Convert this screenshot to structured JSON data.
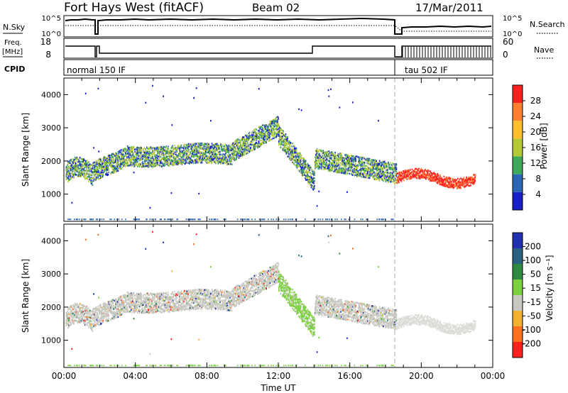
{
  "header": {
    "title": "Fort Hays West (fitACF)",
    "beam": "Beam 02",
    "date": "17/Mar/2011"
  },
  "panels": {
    "nsky": {
      "left_label": "N.Sky",
      "right_label": "N.Search",
      "left_ticks": [
        "10^5",
        "10^0"
      ],
      "right_ticks": [
        "10^5",
        "10^0"
      ],
      "right_legend_style": "dotted"
    },
    "freq": {
      "left_label": "Freq.",
      "left_unit": "[MHz]",
      "right_label": "Nave",
      "left_ticks": [
        "18",
        "8"
      ],
      "right_ticks": [
        "60",
        "0"
      ],
      "right_legend_style": "dotted"
    },
    "cpid": {
      "label": "CPID",
      "modes": [
        {
          "label": "normal 150 IF",
          "start_hour": 0,
          "end_hour": 18.6
        },
        {
          "label": "tau 502 IF",
          "start_hour": 18.6,
          "end_hour": 24
        }
      ]
    }
  },
  "chart_data": [
    {
      "type": "heatmap",
      "name": "power",
      "ylabel": "Slant Range [km]",
      "xlim": [
        0,
        24
      ],
      "ylim": [
        180,
        4500
      ],
      "yticks": [
        1000,
        2000,
        3000,
        4000
      ],
      "colorbar": {
        "label": "Power [dB]",
        "ticks": [
          "28",
          "24",
          "20",
          "16",
          "12",
          "8",
          "4"
        ],
        "colors": [
          "#ff2020",
          "#ff8030",
          "#ffc030",
          "#b4c838",
          "#3fa85a",
          "#2a66b4",
          "#1a20c8"
        ]
      }
    },
    {
      "type": "heatmap",
      "name": "velocity",
      "ylabel": "Slant Range [km]",
      "xlim": [
        0,
        24
      ],
      "ylim": [
        180,
        4500
      ],
      "yticks": [
        1000,
        2000,
        3000,
        4000
      ],
      "xticks": [
        "00:00",
        "04:00",
        "08:00",
        "12:00",
        "16:00",
        "20:00",
        "00:00"
      ],
      "xlabel": "Time UT",
      "colorbar": {
        "label": "Velocity [m s⁻¹]",
        "ticks": [
          "200",
          "100",
          "50",
          "15",
          "-15",
          "-50",
          "-100",
          "-200"
        ],
        "colors": [
          "#2030b0",
          "#2a6080",
          "#2e8a40",
          "#7cd040",
          "#c8c8c0",
          "#f0b030",
          "#ff7020",
          "#ff2020"
        ]
      }
    }
  ],
  "colors": {
    "scan_boundary": "#aaaaaa",
    "panel_border": "#000000"
  }
}
